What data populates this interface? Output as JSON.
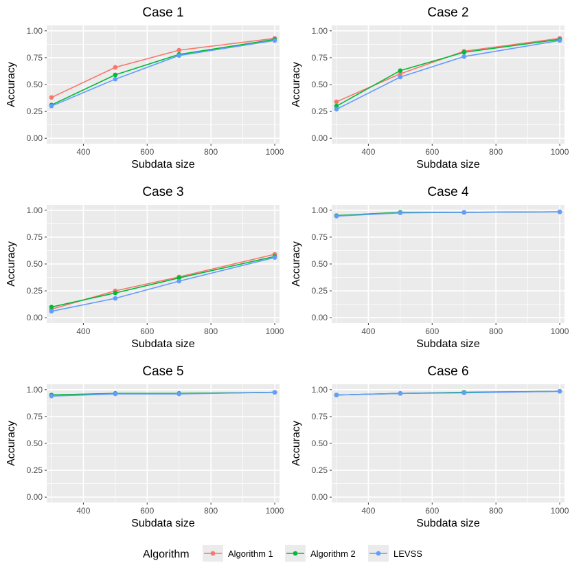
{
  "colors": {
    "Algorithm 1": "#F8766D",
    "Algorithm 2": "#00BA38",
    "LEVSS": "#619CFF"
  },
  "legend": {
    "title": "Algorithm",
    "entries": [
      "Algorithm 1",
      "Algorithm 2",
      "LEVSS"
    ]
  },
  "chart_data": [
    {
      "type": "line",
      "title": "Case 1",
      "xlabel": "Subdata size",
      "ylabel": "Accuracy",
      "x": [
        300,
        500,
        700,
        1000
      ],
      "xlim": [
        285,
        1015
      ],
      "ylim": [
        -0.05,
        1.05
      ],
      "xticks": [
        400,
        600,
        800,
        1000
      ],
      "yticks": [
        "0.00",
        "0.25",
        "0.50",
        "0.75",
        "1.00"
      ],
      "series": [
        {
          "name": "Algorithm 1",
          "values": [
            0.38,
            0.66,
            0.82,
            0.93
          ]
        },
        {
          "name": "Algorithm 2",
          "values": [
            0.31,
            0.59,
            0.78,
            0.92
          ]
        },
        {
          "name": "LEVSS",
          "values": [
            0.3,
            0.55,
            0.77,
            0.91
          ]
        }
      ]
    },
    {
      "type": "line",
      "title": "Case 2",
      "xlabel": "Subdata size",
      "ylabel": "Accuracy",
      "x": [
        300,
        500,
        700,
        1000
      ],
      "xlim": [
        285,
        1015
      ],
      "ylim": [
        -0.05,
        1.05
      ],
      "xticks": [
        400,
        600,
        800,
        1000
      ],
      "yticks": [
        "0.00",
        "0.25",
        "0.50",
        "0.75",
        "1.00"
      ],
      "series": [
        {
          "name": "Algorithm 1",
          "values": [
            0.34,
            0.6,
            0.81,
            0.93
          ]
        },
        {
          "name": "Algorithm 2",
          "values": [
            0.3,
            0.63,
            0.8,
            0.92
          ]
        },
        {
          "name": "LEVSS",
          "values": [
            0.27,
            0.57,
            0.76,
            0.91
          ]
        }
      ]
    },
    {
      "type": "line",
      "title": "Case 3",
      "xlabel": "Subdata size",
      "ylabel": "Accuracy",
      "x": [
        300,
        500,
        700,
        1000
      ],
      "xlim": [
        285,
        1015
      ],
      "ylim": [
        -0.05,
        1.05
      ],
      "xticks": [
        400,
        600,
        800,
        1000
      ],
      "yticks": [
        "0.00",
        "0.25",
        "0.50",
        "0.75",
        "1.00"
      ],
      "series": [
        {
          "name": "Algorithm 1",
          "values": [
            0.08,
            0.25,
            0.38,
            0.59
          ]
        },
        {
          "name": "Algorithm 2",
          "values": [
            0.1,
            0.23,
            0.37,
            0.57
          ]
        },
        {
          "name": "LEVSS",
          "values": [
            0.06,
            0.18,
            0.34,
            0.56
          ]
        }
      ]
    },
    {
      "type": "line",
      "title": "Case 4",
      "xlabel": "Subdata size",
      "ylabel": "Accuracy",
      "x": [
        300,
        500,
        700,
        1000
      ],
      "xlim": [
        285,
        1015
      ],
      "ylim": [
        -0.05,
        1.05
      ],
      "xticks": [
        400,
        600,
        800,
        1000
      ],
      "yticks": [
        "0.00",
        "0.25",
        "0.50",
        "0.75",
        "1.00"
      ],
      "series": [
        {
          "name": "Algorithm 1",
          "values": [
            0.95,
            0.98,
            0.98,
            0.985
          ]
        },
        {
          "name": "Algorithm 2",
          "values": [
            0.95,
            0.98,
            0.98,
            0.985
          ]
        },
        {
          "name": "LEVSS",
          "values": [
            0.945,
            0.975,
            0.98,
            0.985
          ]
        }
      ]
    },
    {
      "type": "line",
      "title": "Case 5",
      "xlabel": "Subdata size",
      "ylabel": "Accuracy",
      "x": [
        300,
        500,
        700,
        1000
      ],
      "xlim": [
        285,
        1015
      ],
      "ylim": [
        -0.05,
        1.05
      ],
      "xticks": [
        400,
        600,
        800,
        1000
      ],
      "yticks": [
        "0.00",
        "0.25",
        "0.50",
        "0.75",
        "1.00"
      ],
      "series": [
        {
          "name": "Algorithm 1",
          "values": [
            0.95,
            0.965,
            0.965,
            0.975
          ]
        },
        {
          "name": "Algorithm 2",
          "values": [
            0.95,
            0.965,
            0.965,
            0.975
          ]
        },
        {
          "name": "LEVSS",
          "values": [
            0.94,
            0.96,
            0.96,
            0.975
          ]
        }
      ]
    },
    {
      "type": "line",
      "title": "Case 6",
      "xlabel": "Subdata size",
      "ylabel": "Accuracy",
      "x": [
        300,
        500,
        700,
        1000
      ],
      "xlim": [
        285,
        1015
      ],
      "ylim": [
        -0.05,
        1.05
      ],
      "xticks": [
        400,
        600,
        800,
        1000
      ],
      "yticks": [
        "0.00",
        "0.25",
        "0.50",
        "0.75",
        "1.00"
      ],
      "series": [
        {
          "name": "Algorithm 1",
          "values": [
            0.95,
            0.965,
            0.975,
            0.985
          ]
        },
        {
          "name": "Algorithm 2",
          "values": [
            0.95,
            0.965,
            0.975,
            0.985
          ]
        },
        {
          "name": "LEVSS",
          "values": [
            0.95,
            0.965,
            0.97,
            0.985
          ]
        }
      ]
    }
  ]
}
